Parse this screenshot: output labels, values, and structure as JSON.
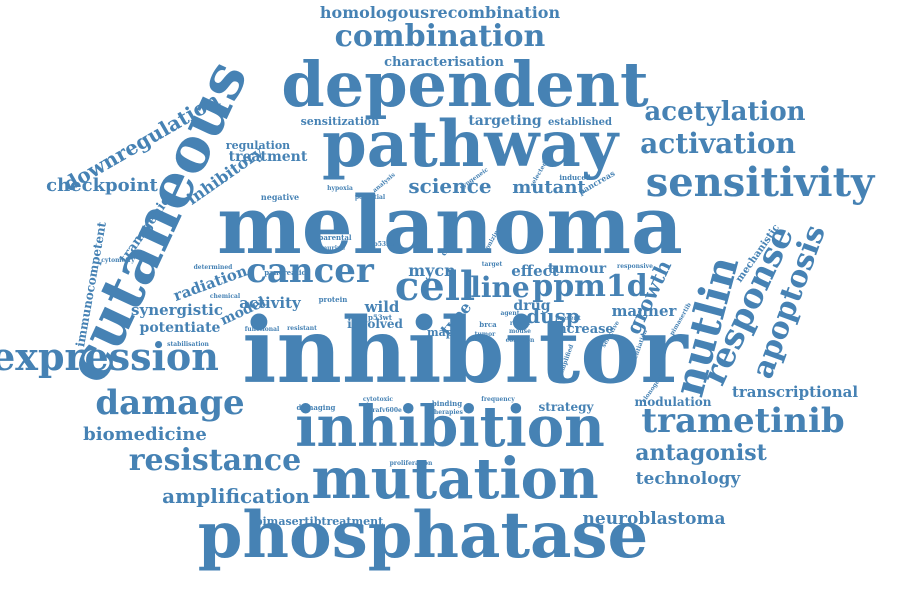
{
  "color": "#4682b4",
  "words": [
    {
      "text": "homologousrecombination",
      "weight": 16
    },
    {
      "text": "combination",
      "weight": 30
    },
    {
      "text": "characterisation",
      "weight": 13
    },
    {
      "text": "dependent",
      "weight": 62
    },
    {
      "text": "cutaneous",
      "weight": 60
    },
    {
      "text": "downregulation",
      "weight": 20
    },
    {
      "text": "acetylation",
      "weight": 26
    },
    {
      "text": "pathway",
      "weight": 64
    },
    {
      "text": "sensitization",
      "weight": 11
    },
    {
      "text": "targeting",
      "weight": 14
    },
    {
      "text": "established",
      "weight": 10
    },
    {
      "text": "activation",
      "weight": 28
    },
    {
      "text": "regulation",
      "weight": 11
    },
    {
      "text": "treatment",
      "weight": 14
    },
    {
      "text": "checkpoint",
      "weight": 18
    },
    {
      "text": "science",
      "weight": 20
    },
    {
      "text": "mutant",
      "weight": 18
    },
    {
      "text": "sensitivity",
      "weight": 40
    },
    {
      "text": "inhibitory",
      "weight": 16
    },
    {
      "text": "melanoma",
      "weight": 80
    },
    {
      "text": "immunocompetent",
      "weight": 12
    },
    {
      "text": "transgenic",
      "weight": 13
    },
    {
      "text": "nutlin",
      "weight": 42
    },
    {
      "text": "response",
      "weight": 34
    },
    {
      "text": "apoptosis",
      "weight": 30
    },
    {
      "text": "cancer",
      "weight": 34
    },
    {
      "text": "cell",
      "weight": 40
    },
    {
      "text": "mycn",
      "weight": 16
    },
    {
      "text": "line",
      "weight": 28
    },
    {
      "text": "ppm1d",
      "weight": 30
    },
    {
      "text": "growth",
      "weight": 20
    },
    {
      "text": "mechanistic",
      "weight": 10
    },
    {
      "text": "radiation",
      "weight": 15
    },
    {
      "text": "activity",
      "weight": 15
    },
    {
      "text": "synergistic",
      "weight": 15
    },
    {
      "text": "potentiate",
      "weight": 14
    },
    {
      "text": "model",
      "weight": 14
    },
    {
      "text": "wild",
      "weight": 15
    },
    {
      "text": "effect",
      "weight": 15
    },
    {
      "text": "tumour",
      "weight": 14
    },
    {
      "text": "drug",
      "weight": 14
    },
    {
      "text": "dusp",
      "weight": 20
    },
    {
      "text": "manner",
      "weight": 15
    },
    {
      "text": "type",
      "weight": 16
    },
    {
      "text": "involved",
      "weight": 12
    },
    {
      "text": "increase",
      "weight": 13
    },
    {
      "text": "mapk",
      "weight": 11
    },
    {
      "text": "expression",
      "weight": 38
    },
    {
      "text": "inhibitor",
      "weight": 90
    },
    {
      "text": "damage",
      "weight": 34
    },
    {
      "text": "transcriptional",
      "weight": 15
    },
    {
      "text": "strategy",
      "weight": 12
    },
    {
      "text": "modulation",
      "weight": 12
    },
    {
      "text": "biomedicine",
      "weight": 18
    },
    {
      "text": "inhibition",
      "weight": 56
    },
    {
      "text": "trametinib",
      "weight": 34
    },
    {
      "text": "resistance",
      "weight": 30
    },
    {
      "text": "antagonist",
      "weight": 22
    },
    {
      "text": "mutation",
      "weight": 56
    },
    {
      "text": "technology",
      "weight": 17
    },
    {
      "text": "amplification",
      "weight": 20
    },
    {
      "text": "neuroblastoma",
      "weight": 17
    },
    {
      "text": "pimasertibtreatment",
      "weight": 11
    },
    {
      "text": "phosphatase",
      "weight": 64
    },
    {
      "text": "hypoxia",
      "weight": 6
    },
    {
      "text": "negative",
      "weight": 8
    },
    {
      "text": "parental",
      "weight": 7
    },
    {
      "text": "murine",
      "weight": 6
    },
    {
      "text": "p53ser",
      "weight": 6
    },
    {
      "text": "ovarian",
      "weight": 8
    },
    {
      "text": "pancreas",
      "weight": 8
    },
    {
      "text": "selected",
      "weight": 6
    },
    {
      "text": "induced",
      "weight": 7
    },
    {
      "text": "responsive",
      "weight": 6
    },
    {
      "text": "determined",
      "weight": 6
    },
    {
      "text": "chemical",
      "weight": 6
    },
    {
      "text": "protein",
      "weight": 7
    },
    {
      "text": "resistant",
      "weight": 6
    },
    {
      "text": "functional",
      "weight": 6
    },
    {
      "text": "stabilisation",
      "weight": 6
    },
    {
      "text": "cytotoxic",
      "weight": 6
    },
    {
      "text": "damaging",
      "weight": 7
    },
    {
      "text": "brafv600e",
      "weight": 6
    },
    {
      "text": "binding",
      "weight": 7
    },
    {
      "text": "therapies",
      "weight": 6
    },
    {
      "text": "frequency",
      "weight": 6
    },
    {
      "text": "proliferation",
      "weight": 6
    },
    {
      "text": "p53wt",
      "weight": 7
    },
    {
      "text": "brca",
      "weight": 7
    },
    {
      "text": "agent",
      "weight": 6
    },
    {
      "text": "retain",
      "weight": 6
    },
    {
      "text": "mouse",
      "weight": 6
    },
    {
      "text": "tumor",
      "weight": 6
    },
    {
      "text": "common",
      "weight": 6
    },
    {
      "text": "selective",
      "weight": 6
    },
    {
      "text": "amplified",
      "weight": 6
    },
    {
      "text": "potentiation",
      "weight": 6
    },
    {
      "text": "clonogenic",
      "weight": 6
    },
    {
      "text": "pimasertib",
      "weight": 6
    },
    {
      "text": "pancreatic",
      "weight": 7
    },
    {
      "text": "cytometry",
      "weight": 6
    },
    {
      "text": "potential",
      "weight": 6
    },
    {
      "text": "syngeneic",
      "weight": 6
    },
    {
      "text": "ionizing",
      "weight": 6
    },
    {
      "text": "present",
      "weight": 6
    },
    {
      "text": "target",
      "weight": 6
    },
    {
      "text": "analysis",
      "weight": 6
    }
  ]
}
